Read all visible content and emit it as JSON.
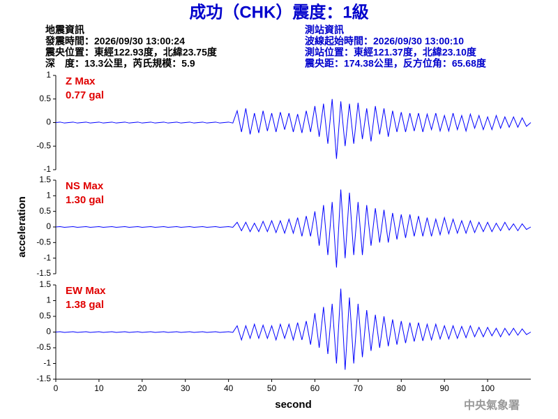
{
  "header": {
    "title": "成功（CHK）震度：1級",
    "quake_info": [
      "地震資訊",
      "發震時間：2026/09/30 13:00:24",
      "震央位置：東經122.93度，北緯23.75度",
      "深　度：13.3公里，芮氏規模：5.9"
    ],
    "station_info": [
      "測站資訊",
      "波線起始時間：2026/09/30 13:00:10",
      "測站位置：東經121.37度，北緯23.10度",
      "震央距：174.38公里，反方位角：65.68度"
    ]
  },
  "footer": {
    "agency": "中央氣象署"
  },
  "chart_data": [
    {
      "type": "line",
      "color": "#0000ff",
      "max_label": "Z Max",
      "max_value_label": "0.77 gal",
      "xlim": [
        0,
        110
      ],
      "ylim": [
        -1,
        1
      ],
      "yticks": [
        1,
        0.5,
        0,
        -0.5,
        -1
      ],
      "x": [
        0,
        1,
        2,
        3,
        4,
        5,
        6,
        7,
        8,
        9,
        10,
        11,
        12,
        13,
        14,
        15,
        16,
        17,
        18,
        19,
        20,
        21,
        22,
        23,
        24,
        25,
        26,
        27,
        28,
        29,
        30,
        31,
        32,
        33,
        34,
        35,
        36,
        37,
        38,
        39,
        40,
        41,
        42,
        43,
        44,
        45,
        46,
        47,
        48,
        49,
        50,
        51,
        52,
        53,
        54,
        55,
        56,
        57,
        58,
        59,
        60,
        61,
        62,
        63,
        64,
        65,
        66,
        67,
        68,
        69,
        70,
        71,
        72,
        73,
        74,
        75,
        76,
        77,
        78,
        79,
        80,
        81,
        82,
        83,
        84,
        85,
        86,
        87,
        88,
        89,
        90,
        91,
        92,
        93,
        94,
        95,
        96,
        97,
        98,
        99,
        100,
        101,
        102,
        103,
        104,
        105,
        106,
        107,
        108,
        109,
        110
      ],
      "values": [
        0,
        0.01,
        -0.01,
        0,
        0.01,
        -0.01,
        0,
        0.01,
        -0.01,
        0,
        0.01,
        -0.01,
        0,
        0.01,
        -0.01,
        0,
        0.01,
        -0.01,
        0,
        0.01,
        -0.01,
        0,
        0.01,
        -0.01,
        0,
        0.01,
        -0.01,
        0,
        0.01,
        -0.01,
        0,
        0.01,
        -0.01,
        0,
        0.01,
        -0.01,
        0,
        0.01,
        -0.01,
        0,
        0.01,
        -0.01,
        0.25,
        -0.2,
        0.3,
        -0.25,
        0.2,
        -0.22,
        0.25,
        -0.18,
        0.2,
        -0.2,
        0.22,
        -0.15,
        0.2,
        -0.2,
        0.18,
        -0.22,
        0.25,
        -0.2,
        0.35,
        -0.3,
        0.4,
        -0.45,
        0.5,
        -0.77,
        0.45,
        -0.5,
        0.4,
        -0.45,
        0.42,
        -0.35,
        0.3,
        -0.4,
        0.35,
        -0.25,
        0.3,
        -0.3,
        0.25,
        -0.2,
        0.22,
        -0.2,
        0.2,
        -0.18,
        0.2,
        -0.2,
        0.18,
        -0.15,
        0.2,
        -0.18,
        0.15,
        -0.18,
        0.2,
        -0.15,
        0.15,
        -0.18,
        0.18,
        -0.12,
        0.15,
        -0.15,
        0.12,
        -0.15,
        0.15,
        -0.12,
        0.12,
        -0.1,
        0.12,
        -0.1,
        0.1,
        -0.08,
        0
      ]
    },
    {
      "type": "line",
      "color": "#0000ff",
      "max_label": "NS Max",
      "max_value_label": "1.30 gal",
      "ylabel": "acceleration",
      "xlim": [
        0,
        110
      ],
      "ylim": [
        -1.5,
        1.5
      ],
      "yticks": [
        1.5,
        1,
        0.5,
        0,
        -0.5,
        -1,
        -1.5
      ],
      "x": [
        0,
        1,
        2,
        3,
        4,
        5,
        6,
        7,
        8,
        9,
        10,
        11,
        12,
        13,
        14,
        15,
        16,
        17,
        18,
        19,
        20,
        21,
        22,
        23,
        24,
        25,
        26,
        27,
        28,
        29,
        30,
        31,
        32,
        33,
        34,
        35,
        36,
        37,
        38,
        39,
        40,
        41,
        42,
        43,
        44,
        45,
        46,
        47,
        48,
        49,
        50,
        51,
        52,
        53,
        54,
        55,
        56,
        57,
        58,
        59,
        60,
        61,
        62,
        63,
        64,
        65,
        66,
        67,
        68,
        69,
        70,
        71,
        72,
        73,
        74,
        75,
        76,
        77,
        78,
        79,
        80,
        81,
        82,
        83,
        84,
        85,
        86,
        87,
        88,
        89,
        90,
        91,
        92,
        93,
        94,
        95,
        96,
        97,
        98,
        99,
        100,
        101,
        102,
        103,
        104,
        105,
        106,
        107,
        108,
        109,
        110
      ],
      "values": [
        0,
        0.01,
        -0.01,
        0,
        0.01,
        -0.01,
        0,
        0.01,
        -0.01,
        0,
        0.01,
        -0.01,
        0,
        0.01,
        -0.01,
        0,
        0.01,
        -0.01,
        0,
        0.01,
        -0.01,
        0,
        0.01,
        -0.01,
        0,
        0.01,
        -0.01,
        0,
        0.01,
        -0.01,
        0,
        0.01,
        -0.01,
        0,
        0.01,
        -0.01,
        0,
        0.01,
        -0.01,
        0,
        0.01,
        -0.01,
        0.15,
        -0.12,
        0.15,
        -0.15,
        0.12,
        -0.15,
        0.18,
        -0.15,
        0.2,
        -0.18,
        0.2,
        -0.2,
        0.25,
        -0.2,
        0.3,
        -0.3,
        0.35,
        -0.3,
        0.5,
        -0.6,
        0.7,
        -0.9,
        0.8,
        -1.3,
        1.2,
        -1,
        1.1,
        -0.9,
        0.8,
        -0.9,
        0.7,
        -0.6,
        0.6,
        -0.5,
        0.55,
        -0.5,
        0.45,
        -0.4,
        0.4,
        -0.35,
        0.4,
        -0.3,
        0.35,
        -0.3,
        0.3,
        -0.3,
        0.25,
        -0.25,
        0.3,
        -0.22,
        0.25,
        -0.2,
        0.2,
        -0.2,
        0.2,
        -0.18,
        0.15,
        -0.15,
        0.15,
        -0.15,
        0.12,
        -0.12,
        0.15,
        -0.1,
        0.1,
        -0.12,
        0.1,
        -0.08,
        0
      ]
    },
    {
      "type": "line",
      "color": "#0000ff",
      "max_label": "EW Max",
      "max_value_label": "1.38 gal",
      "xlabel": "second",
      "xlim": [
        0,
        110
      ],
      "ylim": [
        -1.5,
        1.5
      ],
      "yticks": [
        1.5,
        1,
        0.5,
        0,
        -0.5,
        -1,
        -1.5
      ],
      "xticks": [
        0,
        10,
        20,
        30,
        40,
        50,
        60,
        70,
        80,
        90,
        100
      ],
      "x": [
        0,
        1,
        2,
        3,
        4,
        5,
        6,
        7,
        8,
        9,
        10,
        11,
        12,
        13,
        14,
        15,
        16,
        17,
        18,
        19,
        20,
        21,
        22,
        23,
        24,
        25,
        26,
        27,
        28,
        29,
        30,
        31,
        32,
        33,
        34,
        35,
        36,
        37,
        38,
        39,
        40,
        41,
        42,
        43,
        44,
        45,
        46,
        47,
        48,
        49,
        50,
        51,
        52,
        53,
        54,
        55,
        56,
        57,
        58,
        59,
        60,
        61,
        62,
        63,
        64,
        65,
        66,
        67,
        68,
        69,
        70,
        71,
        72,
        73,
        74,
        75,
        76,
        77,
        78,
        79,
        80,
        81,
        82,
        83,
        84,
        85,
        86,
        87,
        88,
        89,
        90,
        91,
        92,
        93,
        94,
        95,
        96,
        97,
        98,
        99,
        100,
        101,
        102,
        103,
        104,
        105,
        106,
        107,
        108,
        109,
        110
      ],
      "values": [
        0,
        0.01,
        -0.01,
        0,
        0.01,
        -0.01,
        0,
        0.01,
        -0.01,
        0,
        0.01,
        -0.01,
        0,
        0.01,
        -0.01,
        0,
        0.01,
        -0.01,
        0,
        0.01,
        -0.01,
        0,
        0.01,
        -0.01,
        0,
        0.01,
        -0.01,
        0,
        0.01,
        -0.01,
        0,
        0.01,
        -0.01,
        0,
        0.01,
        -0.01,
        0,
        0.01,
        -0.01,
        0,
        0.01,
        -0.01,
        0.2,
        -0.25,
        0.2,
        -0.2,
        0.25,
        -0.2,
        0.22,
        -0.2,
        0.2,
        -0.25,
        0.25,
        -0.2,
        0.25,
        -0.25,
        0.3,
        -0.25,
        0.35,
        -0.4,
        0.6,
        -0.5,
        0.8,
        -0.7,
        0.9,
        -1,
        1.38,
        -1.2,
        1.1,
        -1,
        0.9,
        -0.8,
        0.7,
        -0.6,
        0.55,
        -0.5,
        0.5,
        -0.45,
        0.4,
        -0.4,
        0.35,
        -0.35,
        0.3,
        -0.3,
        0.3,
        -0.28,
        0.25,
        -0.25,
        0.25,
        -0.22,
        0.2,
        -0.22,
        0.2,
        -0.2,
        0.18,
        -0.18,
        0.2,
        -0.15,
        0.15,
        -0.15,
        0.15,
        -0.12,
        0.12,
        -0.15,
        0.12,
        -0.1,
        0.12,
        -0.1,
        0.1,
        -0.08,
        0
      ]
    }
  ]
}
